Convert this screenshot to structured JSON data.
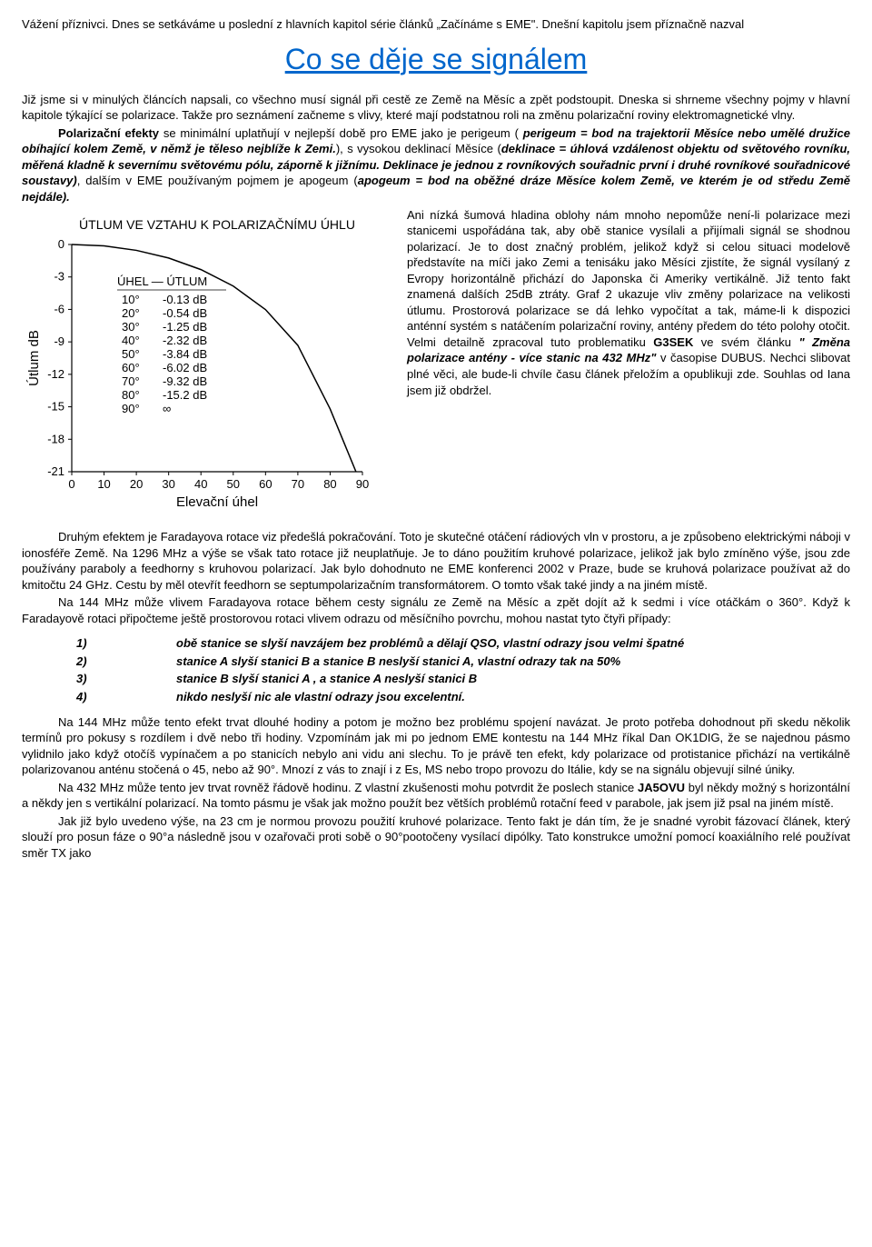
{
  "intro": {
    "p1": "Vážení příznivci. Dnes se setkáváme u poslední z hlavních kapitol série článků „Začínáme s EME\". Dnešní kapitolu jsem příznačně nazval",
    "title": "Co se děje se signálem",
    "p2a": "Již jsme si v minulých článcích napsali, co všechno musí signál při cestě ze Země na Měsíc a zpět podstoupit. Dneska si shrneme všechny pojmy v hlavní kapitole týkající se polarizace. Takže pro seznámení začneme s vlivy, které mají podstatnou roli na změnu polarizační roviny elektromagnetické vlny.",
    "p2b_lead": "Polarizační efekty",
    "p2b": " se minimální uplatňují v nejlepší době pro EME jako je perigeum (",
    "p2b_def1": " perigeum = bod na trajektorii Měsíce nebo umělé družice obíhající kolem Země, v němž je těleso nejblíže k Zemi.",
    "p2b_mid": "), s vysokou deklinací Měsíce (",
    "p2b_def2": "deklinace = úhlová vzdálenost objektu od světového rovníku, měřená kladně k severnímu světovému pólu, záporně k jižnímu. Deklinace je jednou z rovníkových souřadnic první i druhé rovníkové souřadnicové soustavy)",
    "p2b_mid2": ", dalším v EME používaným pojmem je apogeum (",
    "p2b_def3": "apogeum = bod na oběžné dráze Měsíce kolem Země, ve kterém je od středu Země nejdále).",
    "right_text": "Ani nízká šumová hladina oblohy nám mnoho nepomůže není-li polarizace mezi stanicemi uspořádána tak, aby obě stanice vysílali a přijímali signál se shodnou polarizací. Je to dost značný problém, jelikož když si celou situaci modelově představíte na míči jako Zemi a tenisáku jako Měsíci zjistíte, že signál vysílaný z Evropy horizontálně přichází do Japonska či Ameriky vertikálně. Již tento fakt znamená dalších 25dB ztráty. Graf 2 ukazuje vliv změny polarizace na velikosti útlumu. Prostorová polarizace se dá lehko vypočítat a tak, máme-li k dispozici anténní systém s natáčením polarizační roviny, antény předem do této polohy otočit. Velmi detailně zpracoval tuto problematiku ",
    "g3sek": "G3SEK",
    "right_text2": " ve svém článku ",
    "article_title": "\" Změna polarizace antény - více stanic na 432 MHz\"",
    "right_text3": " v časopise DUBUS. Nechci slibovat plné věci, ale bude-li chvíle času článek přeložím a opublikuji zde. Souhlas od Iana jsem již obdržel."
  },
  "chart": {
    "title": "ÚTLUM VE VZTAHU K POLARIZAČNÍMU ÚHLU",
    "ylabel": "Útlum dB",
    "xlabel": "Elevační úhel",
    "table_header": "ÚHEL — ÚTLUM",
    "table_rows": [
      [
        "10°",
        "-0.13 dB"
      ],
      [
        "20°",
        "-0.54 dB"
      ],
      [
        "30°",
        "-1.25 dB"
      ],
      [
        "40°",
        "-2.32 dB"
      ],
      [
        "50°",
        "-3.84 dB"
      ],
      [
        "60°",
        "-6.02 dB"
      ],
      [
        "70°",
        "-9.32 dB"
      ],
      [
        "80°",
        "-15.2 dB"
      ],
      [
        "90°",
        "∞"
      ]
    ],
    "y_ticks": [
      0,
      -3,
      -6,
      -9,
      -12,
      -15,
      -18,
      -21
    ],
    "x_ticks": [
      0,
      10,
      20,
      30,
      40,
      50,
      60,
      70,
      80,
      90
    ],
    "curve_points": [
      [
        0,
        0
      ],
      [
        10,
        -0.13
      ],
      [
        20,
        -0.54
      ],
      [
        30,
        -1.25
      ],
      [
        40,
        -2.32
      ],
      [
        50,
        -3.84
      ],
      [
        60,
        -6.02
      ],
      [
        70,
        -9.32
      ],
      [
        80,
        -15.2
      ],
      [
        88,
        -21
      ]
    ],
    "line_color": "#000000",
    "bg_color": "#ffffff",
    "axis_color": "#000000",
    "font_size_title": 14,
    "font_size_labels": 13
  },
  "after_chart": {
    "p1": "Druhým efektem je Faradayova rotace viz předešlá pokračování. Toto je skutečné otáčení rádiových vln v prostoru, a je způsobeno elektrickými náboji v ionosféře Země. Na 1296 MHz a výše se však tato rotace již neuplatňuje. Je to dáno použitím kruhové polarizace, jelikož jak bylo zmíněno výše, jsou zde používány paraboly a feedhorny s kruhovou polarizací. Jak bylo dohodnuto ne EME konferenci 2002 v Praze, bude se kruhová polarizace používat až do kmitočtu 24 GHz. Cestu by měl otevřít feedhorn se septumpolarizačním transformátorem. O tomto však také jindy a na jiném místě.",
    "p2": "Na 144 MHz může vlivem Faradayova rotace během cesty signálu ze Země na Měsíc a zpět dojít až k sedmi i více otáčkám o 360°. Když k Faradayově rotaci připočteme ještě prostorovou rotaci vlivem odrazu od měsíčního povrchu, mohou nastat tyto čtyři případy:"
  },
  "cases": [
    "obě stanice se slyší navzájem bez problémů a dělají QSO, vlastní odrazy jsou velmi špatné",
    "stanice A slyší stanici B a stanice B neslyší stanici A, vlastní odrazy tak na 50%",
    "stanice B slyší stanici A , a stanice A neslyší stanici B",
    "nikdo neslyší nic ale vlastní odrazy jsou excelentní."
  ],
  "tail": {
    "p1": "Na 144 MHz může tento efekt trvat dlouhé hodiny a potom je možno bez problému spojení navázat. Je proto potřeba dohodnout při skedu několik termínů pro pokusy s rozdílem i dvě nebo tři hodiny. Vzpomínám jak mi po jednom EME kontestu na 144 MHz říkal Dan OK1DIG, že se najednou pásmo vylidnilo jako když otočíš vypínačem a po stanicích nebylo ani vidu ani slechu. To je právě ten efekt, kdy polarizace od protistanice přichází na vertikálně polarizovanou anténu stočená o 45, nebo až 90°. Mnozí z vás to znají i z Es, MS nebo tropo provozu do Itálie, kdy se na signálu objevují silné úniky.",
    "p2a": "Na 432 MHz může tento jev trvat rovněž řádově hodinu. Z vlastní zkušenosti mohu potvrdit že poslech stanice ",
    "ja5ovu": "JA5OVU",
    "p2b": " byl někdy možný s horizontální a někdy jen s vertikální polarizací. Na tomto pásmu je však jak možno použít bez větších problémů rotační feed v parabole, jak jsem již psal na jiném místě.",
    "p3": "Jak již bylo uvedeno výše, na 23 cm je normou provozu použití kruhové polarizace. Tento fakt je dán tím, že je snadné vyrobit fázovací článek, který slouží pro posun fáze o 90°a následně jsou v ozařovači proti sobě o 90°pootočeny vysílací dipólky. Tato konstrukce umožní pomocí koaxiálního relé používat směr TX jako"
  }
}
